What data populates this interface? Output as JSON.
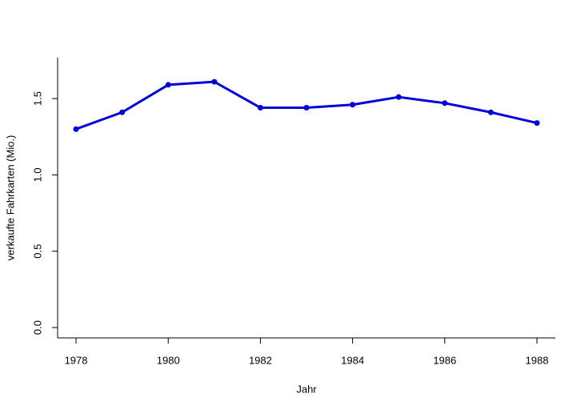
{
  "chart_data": {
    "type": "line",
    "xlabel": "Jahr",
    "ylabel": "verkaufte Fahrkarten (Mio.)",
    "x": [
      1978,
      1979,
      1980,
      1981,
      1982,
      1983,
      1984,
      1985,
      1986,
      1987,
      1988
    ],
    "series": [
      {
        "name": "verkaufte Fahrkarten",
        "color": "#0000dd",
        "values": [
          1.3,
          1.41,
          1.59,
          1.61,
          1.44,
          1.44,
          1.46,
          1.51,
          1.47,
          1.41,
          1.34
        ]
      }
    ],
    "xlim": [
      1977.6,
      1988.4
    ],
    "xticks": [
      1978,
      1980,
      1982,
      1984,
      1986,
      1988
    ],
    "ylim": [
      -0.068,
      1.768
    ],
    "yticks": [
      {
        "value": 0,
        "label": "0.0"
      },
      0.5,
      {
        "value": 1,
        "label": "1.0"
      },
      1.5
    ]
  }
}
